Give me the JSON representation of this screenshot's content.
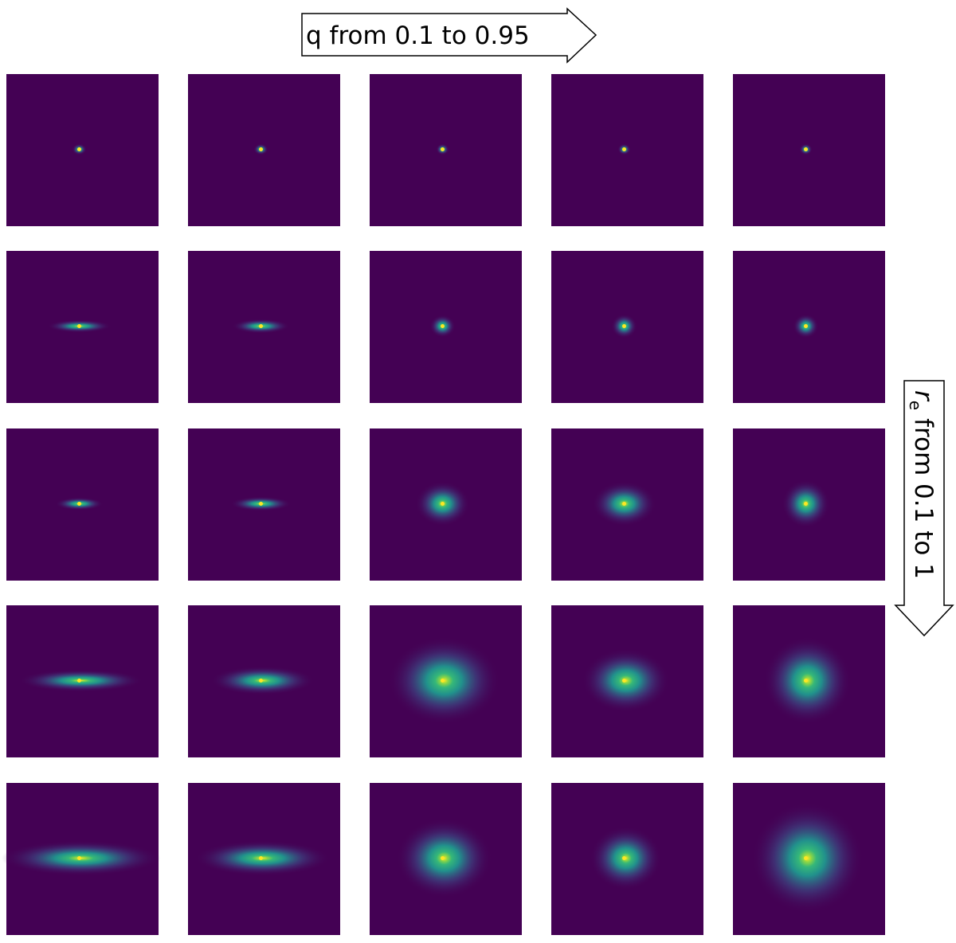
{
  "top_arrow": {
    "label": "q from 0.1 to 0.95"
  },
  "side_arrow": {
    "symbol": "r",
    "subscript": "e",
    "label": "from 0.1 to 1"
  }
}
